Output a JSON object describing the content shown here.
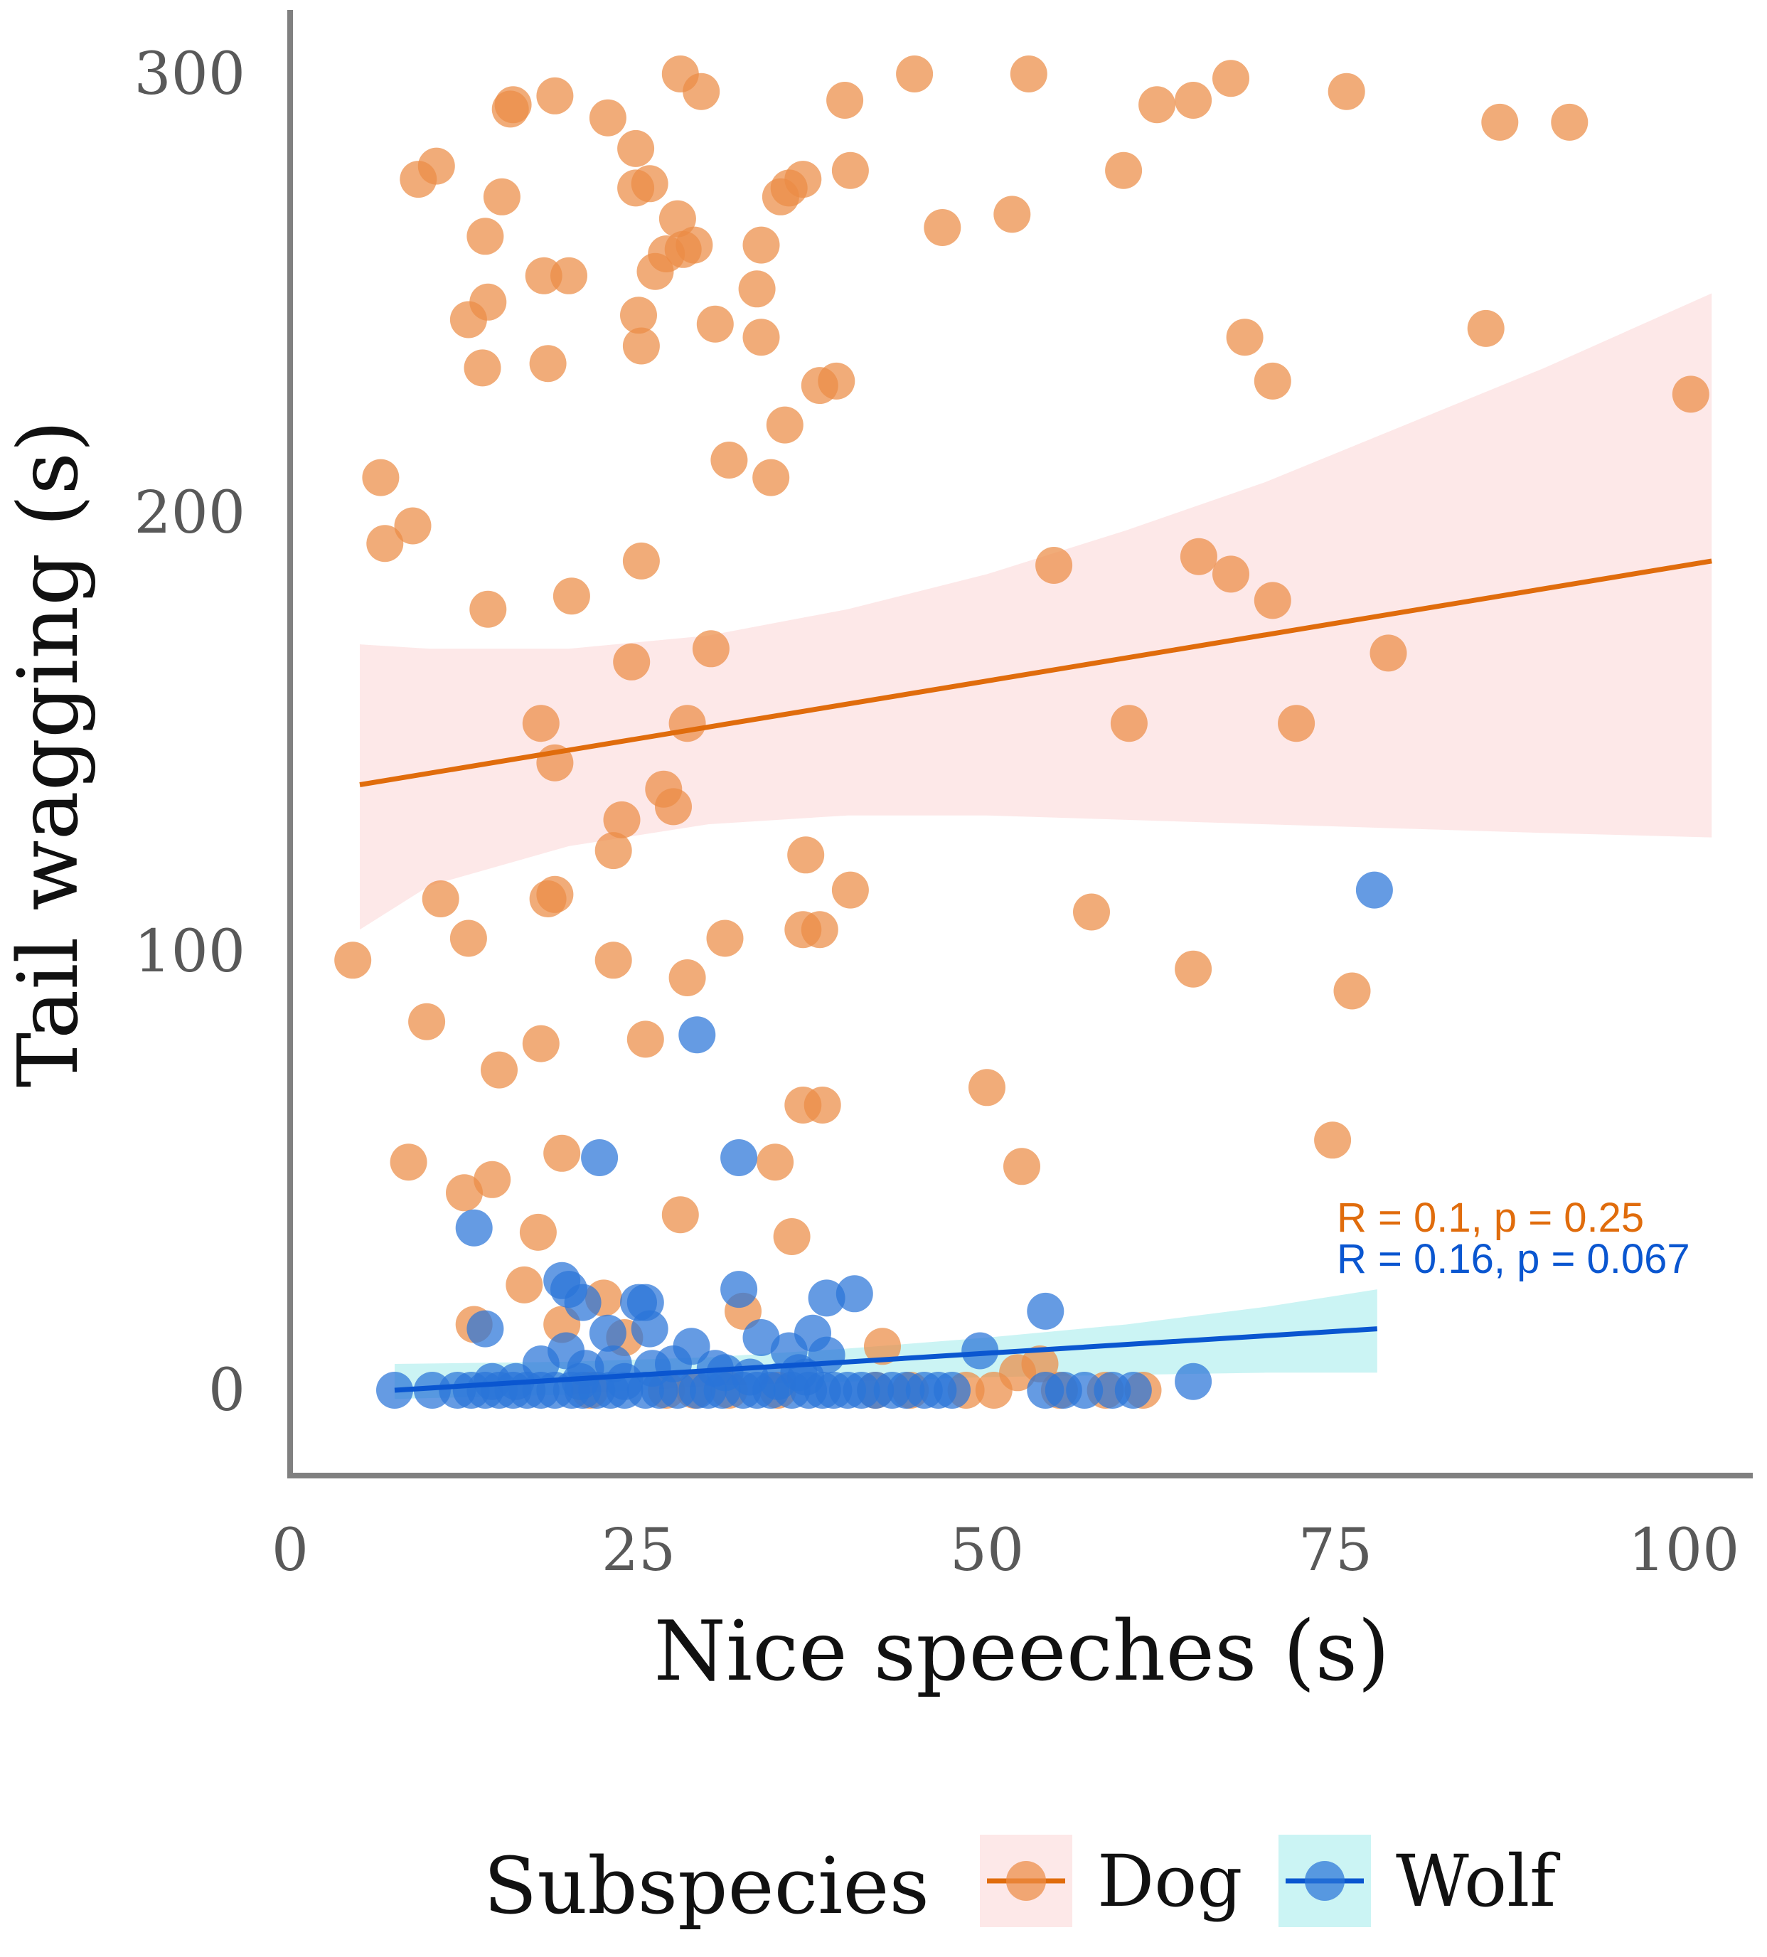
{
  "chart_data": {
    "type": "scatter",
    "title": "",
    "xlabel": "Nice speeches (s)",
    "ylabel": "Tail wagging (s)",
    "xlim": [
      0,
      105
    ],
    "ylim": [
      -20,
      308
    ],
    "x_ticks": [
      0,
      25,
      50,
      75,
      100
    ],
    "y_ticks": [
      0,
      100,
      200,
      300
    ],
    "x_tick_labels": [
      "0",
      "25",
      "50",
      "75",
      "100"
    ],
    "y_tick_labels": [
      "0",
      "100",
      "200",
      "300"
    ],
    "grid": false,
    "legend": {
      "title": "Subspecies",
      "position": "bottom",
      "entries": [
        "Dog",
        "Wolf"
      ]
    },
    "colors": {
      "Dog": "#e06c0c",
      "Dog_point": "#ec8c45",
      "Dog_band": "#fcd9d9",
      "Wolf": "#0a56d0",
      "Wolf_point": "#2a74d8",
      "Wolf_band": "#a8ecec",
      "axis": "#808080"
    },
    "series": [
      {
        "name": "Dog",
        "regression": {
          "x": [
            5,
            102
          ],
          "y": [
            138,
            189
          ]
        },
        "ci_band": {
          "x": [
            5,
            10,
            20,
            30,
            40,
            50,
            60,
            70,
            80,
            90,
            102
          ],
          "lower": [
            105,
            115,
            124,
            129,
            131,
            131,
            130,
            129,
            128,
            127,
            126
          ],
          "upper": [
            170,
            169,
            169,
            172,
            178,
            186,
            196,
            207,
            220,
            233,
            250
          ]
        },
        "stat": "R = 0.1, p = 0.25",
        "points": [
          [
            4.5,
            98
          ],
          [
            6.5,
            208
          ],
          [
            6.8,
            193
          ],
          [
            8.5,
            52
          ],
          [
            8.8,
            197
          ],
          [
            9.2,
            276
          ],
          [
            9.8,
            84
          ],
          [
            10.5,
            279
          ],
          [
            10.8,
            112
          ],
          [
            12.5,
            45
          ],
          [
            12.8,
            103
          ],
          [
            12.8,
            244
          ],
          [
            13.2,
            15
          ],
          [
            13.8,
            233
          ],
          [
            14.0,
            263
          ],
          [
            14.2,
            248
          ],
          [
            14.2,
            178
          ],
          [
            14.5,
            48
          ],
          [
            15.0,
            73
          ],
          [
            15.2,
            272
          ],
          [
            15.8,
            292
          ],
          [
            16.0,
            293
          ],
          [
            16.8,
            24
          ],
          [
            17.8,
            36
          ],
          [
            18.0,
            152
          ],
          [
            18.0,
            79
          ],
          [
            18.2,
            254
          ],
          [
            18.5,
            234
          ],
          [
            18.5,
            112
          ],
          [
            19.0,
            143
          ],
          [
            19.0,
            113
          ],
          [
            19.0,
            295
          ],
          [
            19.5,
            54
          ],
          [
            19.5,
            15
          ],
          [
            20.0,
            254
          ],
          [
            20.2,
            181
          ],
          [
            22.5,
            21
          ],
          [
            22.8,
            290
          ],
          [
            23.2,
            98
          ],
          [
            23.2,
            123
          ],
          [
            23.8,
            130
          ],
          [
            24.0,
            12
          ],
          [
            24.5,
            166
          ],
          [
            24.8,
            283
          ],
          [
            24.8,
            274
          ],
          [
            25.0,
            245
          ],
          [
            25.2,
            189
          ],
          [
            25.2,
            238
          ],
          [
            25.5,
            80
          ],
          [
            25.8,
            275
          ],
          [
            26.2,
            255
          ],
          [
            26.8,
            137
          ],
          [
            27.0,
            259
          ],
          [
            27.5,
            133
          ],
          [
            27.8,
            267
          ],
          [
            28.0,
            40
          ],
          [
            28.0,
            300
          ],
          [
            28.2,
            260
          ],
          [
            28.5,
            152
          ],
          [
            28.5,
            94
          ],
          [
            29.0,
            261
          ],
          [
            29.5,
            296
          ],
          [
            30.2,
            169
          ],
          [
            30.5,
            243
          ],
          [
            31.2,
            103
          ],
          [
            31.5,
            212
          ],
          [
            32.5,
            18
          ],
          [
            33.5,
            251
          ],
          [
            33.8,
            261
          ],
          [
            33.8,
            240
          ],
          [
            34.5,
            208
          ],
          [
            34.8,
            52
          ],
          [
            35.2,
            272
          ],
          [
            35.5,
            220
          ],
          [
            35.8,
            274
          ],
          [
            36.0,
            35
          ],
          [
            36.8,
            276
          ],
          [
            36.8,
            105
          ],
          [
            36.8,
            65
          ],
          [
            37.0,
            122
          ],
          [
            38.0,
            229
          ],
          [
            38.0,
            105
          ],
          [
            38.2,
            65
          ],
          [
            39.2,
            230
          ],
          [
            39.8,
            294
          ],
          [
            40.2,
            278
          ],
          [
            40.2,
            114
          ],
          [
            42.5,
            10
          ],
          [
            44.8,
            300
          ],
          [
            46.8,
            265
          ],
          [
            50.0,
            69
          ],
          [
            51.8,
            268
          ],
          [
            52.2,
            4
          ],
          [
            52.5,
            51
          ],
          [
            53.0,
            300
          ],
          [
            53.8,
            6
          ],
          [
            54.8,
            188
          ],
          [
            57.5,
            109
          ],
          [
            59.8,
            278
          ],
          [
            60.2,
            152
          ],
          [
            62.2,
            293
          ],
          [
            64.8,
            294
          ],
          [
            64.8,
            96
          ],
          [
            65.2,
            190
          ],
          [
            67.5,
            299
          ],
          [
            67.5,
            186
          ],
          [
            68.5,
            240
          ],
          [
            70.5,
            230
          ],
          [
            70.5,
            180
          ],
          [
            72.2,
            152
          ],
          [
            74.8,
            57
          ],
          [
            75.8,
            296
          ],
          [
            76.2,
            91
          ],
          [
            78.8,
            168
          ],
          [
            85.8,
            242
          ],
          [
            86.8,
            289
          ],
          [
            91.8,
            289
          ],
          [
            100.5,
            227
          ],
          [
            21.5,
            0
          ],
          [
            27.0,
            0
          ],
          [
            29.0,
            0
          ],
          [
            31.5,
            0
          ],
          [
            35.0,
            0
          ],
          [
            42.0,
            0
          ],
          [
            44.5,
            0
          ],
          [
            48.5,
            0
          ],
          [
            50.5,
            0
          ],
          [
            55.2,
            0
          ],
          [
            58.5,
            0
          ],
          [
            61.2,
            0
          ]
        ]
      },
      {
        "name": "Wolf",
        "regression": {
          "x": [
            7.5,
            78
          ],
          "y": [
            0,
            14
          ]
        },
        "ci_band": {
          "x": [
            7.5,
            20,
            30,
            40,
            50,
            60,
            70,
            78
          ],
          "lower": [
            -2,
            -1,
            1,
            2,
            3,
            3.5,
            4,
            4
          ],
          "upper": [
            6,
            6.5,
            7.5,
            9.5,
            12,
            15,
            19,
            23
          ]
        },
        "stat": "R = 0.16, p = 0.067",
        "points": [
          [
            77.8,
            114
          ],
          [
            29.2,
            81
          ],
          [
            32.2,
            53
          ],
          [
            22.2,
            53
          ],
          [
            13.2,
            37
          ],
          [
            19.5,
            25
          ],
          [
            20.0,
            23
          ],
          [
            21.0,
            20
          ],
          [
            25.0,
            20
          ],
          [
            25.5,
            20
          ],
          [
            32.2,
            23
          ],
          [
            38.5,
            21
          ],
          [
            40.5,
            22
          ],
          [
            54.2,
            18
          ],
          [
            14.0,
            14
          ],
          [
            22.8,
            13
          ],
          [
            25.8,
            14
          ],
          [
            28.8,
            10
          ],
          [
            33.8,
            12
          ],
          [
            35.8,
            9
          ],
          [
            37.5,
            13
          ],
          [
            38.5,
            8
          ],
          [
            49.5,
            9
          ],
          [
            64.8,
            2
          ],
          [
            18.0,
            6
          ],
          [
            19.8,
            9
          ],
          [
            21.2,
            5
          ],
          [
            23.2,
            6
          ],
          [
            26.0,
            5
          ],
          [
            27.5,
            6
          ],
          [
            30.5,
            5
          ],
          [
            31.2,
            4
          ],
          [
            33.0,
            3
          ],
          [
            36.5,
            4
          ],
          [
            7.5,
            0
          ],
          [
            10.2,
            0
          ],
          [
            12.0,
            0
          ],
          [
            13.0,
            0
          ],
          [
            14.0,
            0
          ],
          [
            15.0,
            0
          ],
          [
            16.0,
            0
          ],
          [
            17.0,
            0
          ],
          [
            18.0,
            0
          ],
          [
            19.0,
            0
          ],
          [
            20.2,
            0
          ],
          [
            21.0,
            0
          ],
          [
            22.0,
            0
          ],
          [
            23.0,
            0
          ],
          [
            24.0,
            0
          ],
          [
            25.5,
            0
          ],
          [
            26.5,
            0
          ],
          [
            27.8,
            0
          ],
          [
            29.2,
            0
          ],
          [
            30.0,
            0
          ],
          [
            31.0,
            0
          ],
          [
            32.5,
            0
          ],
          [
            33.5,
            0
          ],
          [
            34.5,
            0
          ],
          [
            36.0,
            0
          ],
          [
            37.2,
            0
          ],
          [
            38.2,
            0
          ],
          [
            39.0,
            0
          ],
          [
            40.0,
            0
          ],
          [
            41.0,
            0
          ],
          [
            42.0,
            0
          ],
          [
            43.2,
            0
          ],
          [
            44.2,
            0
          ],
          [
            45.5,
            0
          ],
          [
            46.5,
            0
          ],
          [
            47.5,
            0
          ],
          [
            54.2,
            0
          ],
          [
            55.5,
            0
          ],
          [
            57.0,
            0
          ],
          [
            59.0,
            0
          ],
          [
            60.5,
            0
          ],
          [
            14.5,
            2
          ],
          [
            16.2,
            2
          ],
          [
            20.8,
            2
          ],
          [
            24.0,
            2
          ],
          [
            35.0,
            2
          ],
          [
            37.0,
            3
          ]
        ]
      }
    ]
  }
}
